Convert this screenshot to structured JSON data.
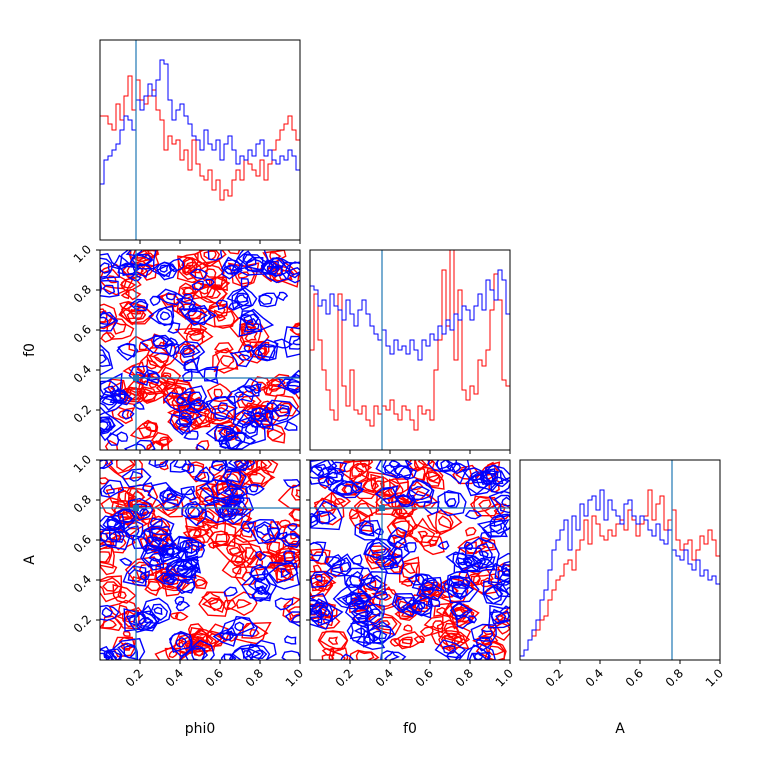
{
  "chart_data": {
    "type": "corner",
    "parameters": [
      "phi0",
      "f0",
      "A"
    ],
    "axis_labels": {
      "x": [
        "phi0",
        "f0",
        "A"
      ],
      "y": [
        "f0",
        "A"
      ]
    },
    "range": [
      0,
      1
    ],
    "x_ticks": [
      "0.2",
      "0.4",
      "0.6",
      "0.8",
      "1.0"
    ],
    "y_ticks": [
      "0.2",
      "0.4",
      "0.6",
      "0.8",
      "1.0"
    ],
    "truth": {
      "phi0": 0.18,
      "f0": 0.36,
      "A": 0.76
    },
    "colors": {
      "series_a": "#ff0000",
      "series_b": "#0000ff",
      "truth": "#1f77b4",
      "axis": "#000000"
    },
    "series": [
      {
        "color": "#ff0000",
        "histograms": {
          "phi0": [
            0.62,
            0.62,
            0.58,
            0.55,
            0.68,
            0.6,
            0.72,
            0.82,
            0.65,
            0.8,
            0.7,
            0.68,
            0.72,
            0.75,
            0.65,
            0.6,
            0.45,
            0.52,
            0.48,
            0.5,
            0.4,
            0.45,
            0.35,
            0.5,
            0.38,
            0.32,
            0.3,
            0.35,
            0.25,
            0.3,
            0.2,
            0.25,
            0.22,
            0.3,
            0.35,
            0.3,
            0.4,
            0.38,
            0.35,
            0.32,
            0.4,
            0.3,
            0.38,
            0.45,
            0.5,
            0.55,
            0.58,
            0.62,
            0.55,
            0.5
          ],
          "f0": [
            0.5,
            0.78,
            0.55,
            0.4,
            0.3,
            0.2,
            0.15,
            0.78,
            0.32,
            0.22,
            0.4,
            0.2,
            0.18,
            0.22,
            0.15,
            0.12,
            0.22,
            0.18,
            0.22,
            0.2,
            0.25,
            0.18,
            0.15,
            0.22,
            0.2,
            0.15,
            0.1,
            0.22,
            0.18,
            0.2,
            0.15,
            0.4,
            0.55,
            0.9,
            0.62,
            1.0,
            0.45,
            0.8,
            0.3,
            0.25,
            0.32,
            0.28,
            0.45,
            0.42,
            0.5,
            0.7,
            0.88,
            0.75,
            0.35,
            0.32
          ],
          "A": [
            0.02,
            0.05,
            0.1,
            0.12,
            0.15,
            0.2,
            0.22,
            0.3,
            0.35,
            0.4,
            0.42,
            0.48,
            0.5,
            0.45,
            0.55,
            0.6,
            0.7,
            0.58,
            0.72,
            0.68,
            0.62,
            0.6,
            0.65,
            0.62,
            0.68,
            0.7,
            0.65,
            0.75,
            0.7,
            0.62,
            0.68,
            0.72,
            0.85,
            0.7,
            0.78,
            0.82,
            0.65,
            0.7,
            0.75,
            0.6,
            0.55,
            0.58,
            0.6,
            0.5,
            0.55,
            0.62,
            0.58,
            0.65,
            0.6,
            0.52
          ]
        }
      },
      {
        "color": "#0000ff",
        "histograms": {
          "phi0": [
            0.28,
            0.4,
            0.42,
            0.45,
            0.48,
            0.55,
            0.62,
            0.6,
            0.55,
            0.7,
            0.65,
            0.72,
            0.78,
            0.72,
            0.8,
            0.9,
            0.88,
            0.7,
            0.6,
            0.65,
            0.68,
            0.62,
            0.58,
            0.52,
            0.5,
            0.45,
            0.55,
            0.48,
            0.45,
            0.5,
            0.4,
            0.48,
            0.52,
            0.45,
            0.38,
            0.42,
            0.4,
            0.45,
            0.42,
            0.48,
            0.5,
            0.42,
            0.45,
            0.4,
            0.38,
            0.42,
            0.4,
            0.45,
            0.42,
            0.35
          ],
          "f0": [
            0.82,
            0.8,
            0.72,
            0.75,
            0.68,
            0.78,
            0.72,
            0.7,
            0.65,
            0.75,
            0.68,
            0.62,
            0.7,
            0.75,
            0.68,
            0.62,
            0.58,
            0.55,
            0.6,
            0.52,
            0.48,
            0.55,
            0.5,
            0.52,
            0.48,
            0.55,
            0.5,
            0.45,
            0.55,
            0.52,
            0.58,
            0.55,
            0.62,
            0.58,
            0.65,
            0.6,
            0.68,
            0.65,
            0.72,
            0.7,
            0.65,
            0.72,
            0.78,
            0.7,
            0.85,
            0.8,
            0.75,
            0.9,
            0.85,
            0.68
          ],
          "A": [
            0.02,
            0.05,
            0.1,
            0.15,
            0.2,
            0.3,
            0.35,
            0.45,
            0.55,
            0.6,
            0.65,
            0.7,
            0.55,
            0.72,
            0.65,
            0.78,
            0.72,
            0.8,
            0.82,
            0.75,
            0.85,
            0.7,
            0.8,
            0.75,
            0.72,
            0.68,
            0.78,
            0.8,
            0.72,
            0.68,
            0.72,
            0.7,
            0.65,
            0.62,
            0.68,
            0.6,
            0.58,
            0.65,
            0.55,
            0.52,
            0.5,
            0.55,
            0.48,
            0.45,
            0.5,
            0.42,
            0.45,
            0.4,
            0.42,
            0.38
          ]
        }
      }
    ]
  }
}
